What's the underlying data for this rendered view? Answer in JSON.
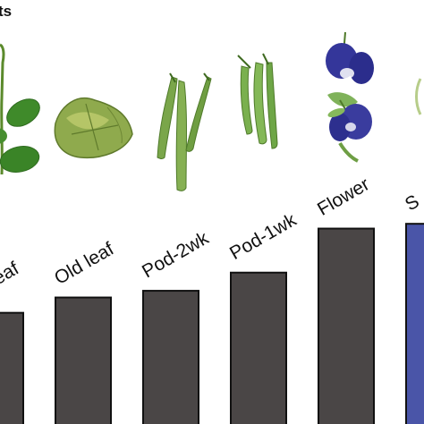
{
  "panel": {
    "title_fragment": "ts"
  },
  "chart_data": {
    "type": "bar",
    "title": "",
    "xlabel": "",
    "ylabel": "",
    "categories": [
      "ng leaf",
      "Old leaf",
      "Pod-2wk",
      "Pod-1wk",
      "Flower",
      "S"
    ],
    "values": [
      105,
      121,
      128,
      147,
      193,
      198
    ],
    "ylim": [
      0,
      215
    ],
    "grid": false,
    "legend": "none",
    "colors": {
      "bar": "#4a4646",
      "highlight": "#4a55a8",
      "edge": "#111111"
    },
    "highlight_index": 5
  },
  "organ_icons": [
    {
      "name": "young-leaf-icon"
    },
    {
      "name": "old-leaf-icon"
    },
    {
      "name": "pod-2wk-icon"
    },
    {
      "name": "pod-1wk-icon"
    },
    {
      "name": "flower-icon"
    },
    {
      "name": "seed-icon"
    }
  ]
}
